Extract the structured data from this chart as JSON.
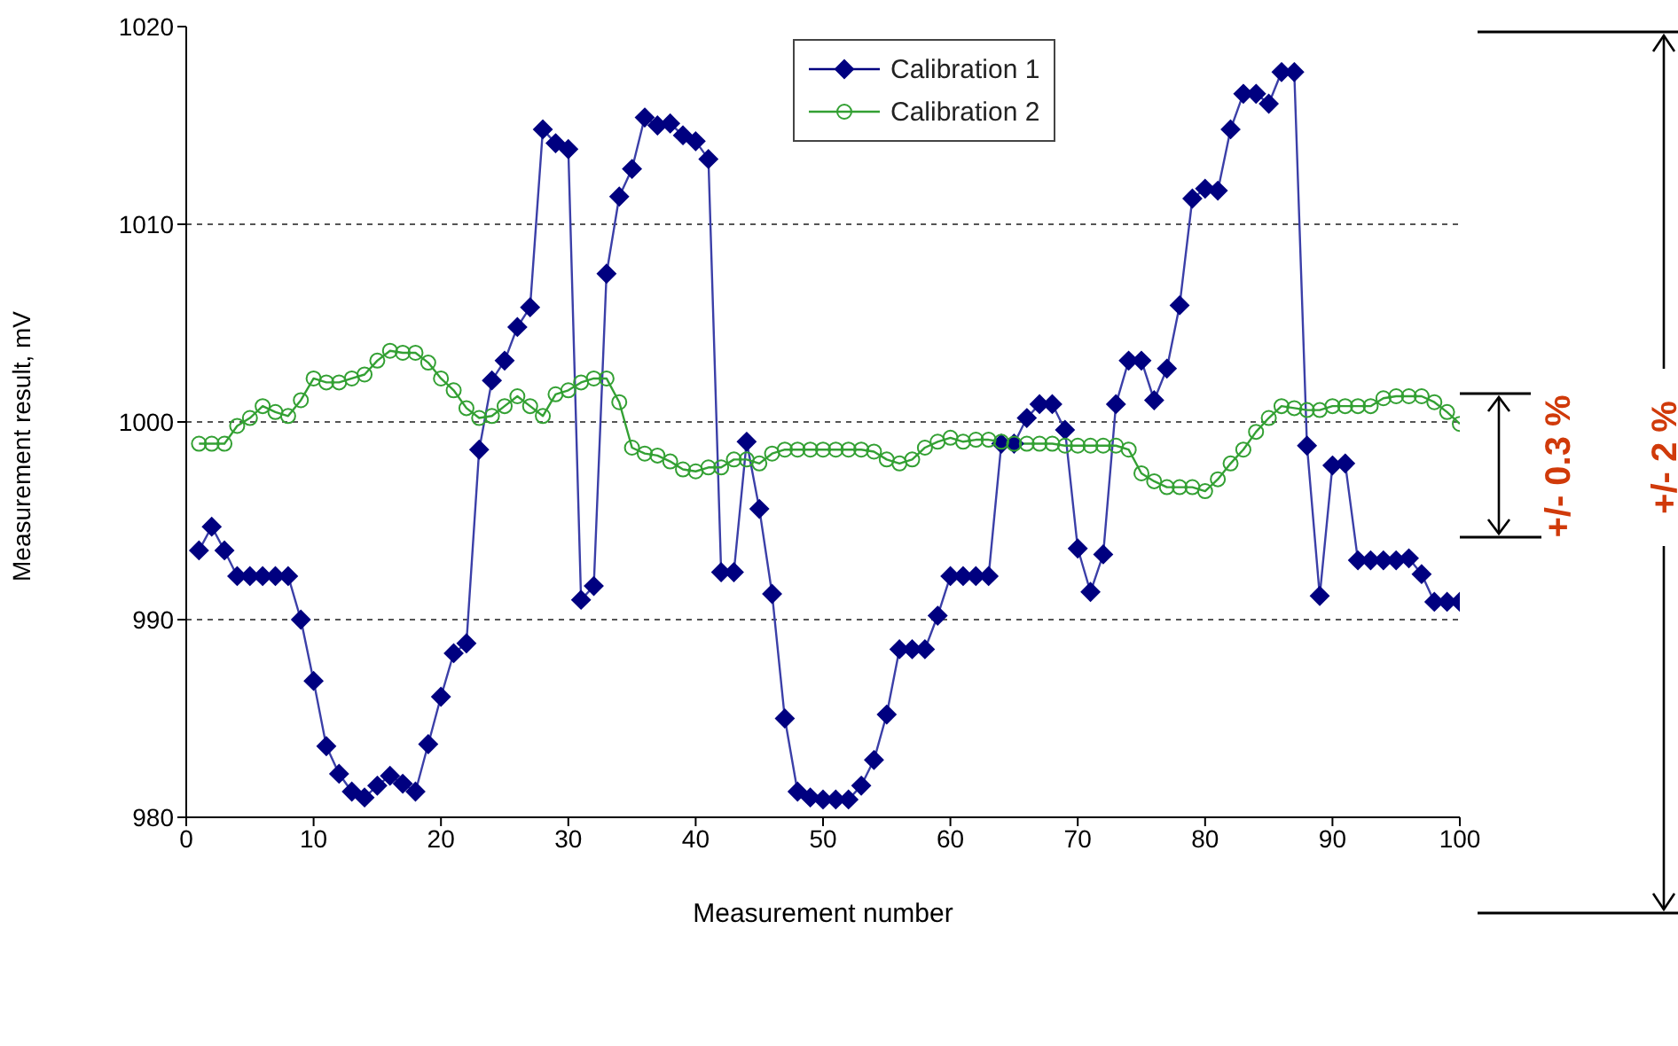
{
  "chart_data": {
    "type": "line",
    "xlabel": "Measurement number",
    "ylabel": "Measurement result, mV",
    "x": [
      1,
      2,
      3,
      4,
      5,
      6,
      7,
      8,
      9,
      10,
      11,
      12,
      13,
      14,
      15,
      16,
      17,
      18,
      19,
      20,
      21,
      22,
      23,
      24,
      25,
      26,
      27,
      28,
      29,
      30,
      31,
      32,
      33,
      34,
      35,
      36,
      37,
      38,
      39,
      40,
      41,
      42,
      43,
      44,
      45,
      46,
      47,
      48,
      49,
      50,
      51,
      52,
      53,
      54,
      55,
      56,
      57,
      58,
      59,
      60,
      61,
      62,
      63,
      64,
      65,
      66,
      67,
      68,
      69,
      70,
      71,
      72,
      73,
      74,
      75,
      76,
      77,
      78,
      79,
      80,
      81,
      82,
      83,
      84,
      85,
      86,
      87,
      88,
      89,
      90,
      91,
      92,
      93,
      94,
      95,
      96,
      97,
      98,
      99,
      100
    ],
    "series": [
      {
        "name": "Calibration 1",
        "color": "#000080",
        "marker": "diamond",
        "values": [
          993.5,
          994.7,
          993.5,
          992.2,
          992.2,
          992.2,
          992.2,
          992.2,
          990.0,
          986.9,
          983.6,
          982.2,
          981.3,
          981.0,
          981.6,
          982.1,
          981.7,
          981.3,
          983.7,
          986.1,
          988.3,
          988.8,
          998.6,
          1002.1,
          1003.1,
          1004.8,
          1005.8,
          1014.8,
          1014.1,
          1013.8,
          991.0,
          991.7,
          1007.5,
          1011.4,
          1012.8,
          1015.4,
          1015.0,
          1015.1,
          1014.5,
          1014.2,
          1013.3,
          992.4,
          992.4,
          999.0,
          995.6,
          991.3,
          985.0,
          981.3,
          981.0,
          980.9,
          980.9,
          980.9,
          981.6,
          982.9,
          985.2,
          988.5,
          988.5,
          988.5,
          990.2,
          992.2,
          992.2,
          992.2,
          992.2,
          998.9,
          998.9,
          1000.2,
          1000.9,
          1000.9,
          999.6,
          993.6,
          991.4,
          993.3,
          1000.9,
          1003.1,
          1003.1,
          1001.1,
          1002.7,
          1005.9,
          1011.3,
          1011.8,
          1011.7,
          1014.8,
          1016.6,
          1016.6,
          1016.1,
          1017.7,
          1017.7,
          998.8,
          991.2,
          997.8,
          997.9,
          993.0,
          993.0,
          993.0,
          993.0,
          993.1,
          992.3,
          990.9,
          990.9,
          990.9
        ]
      },
      {
        "name": "Calibration 2",
        "color": "#33a033",
        "marker": "circle",
        "values": [
          998.9,
          998.9,
          998.9,
          999.8,
          1000.2,
          1000.8,
          1000.5,
          1000.3,
          1001.1,
          1002.2,
          1002.0,
          1002.0,
          1002.2,
          1002.4,
          1003.1,
          1003.6,
          1003.5,
          1003.5,
          1003.0,
          1002.2,
          1001.6,
          1000.7,
          1000.2,
          1000.3,
          1000.8,
          1001.3,
          1000.8,
          1000.3,
          1001.4,
          1001.6,
          1002.0,
          1002.2,
          1002.2,
          1001.0,
          998.7,
          998.4,
          998.3,
          998.0,
          997.6,
          997.5,
          997.7,
          997.7,
          998.1,
          998.1,
          997.9,
          998.4,
          998.6,
          998.6,
          998.6,
          998.6,
          998.6,
          998.6,
          998.6,
          998.5,
          998.1,
          997.9,
          998.1,
          998.7,
          999.0,
          999.2,
          999.0,
          999.1,
          999.1,
          999.0,
          998.9,
          998.9,
          998.9,
          998.9,
          998.8,
          998.8,
          998.8,
          998.8,
          998.8,
          998.6,
          997.4,
          997.0,
          996.7,
          996.7,
          996.7,
          996.5,
          997.1,
          997.9,
          998.6,
          999.5,
          1000.2,
          1000.8,
          1000.7,
          1000.6,
          1000.6,
          1000.8,
          1000.8,
          1000.8,
          1000.8,
          1001.2,
          1001.3,
          1001.3,
          1001.3,
          1001.0,
          1000.5,
          999.9
        ]
      }
    ],
    "xlim": [
      0,
      100
    ],
    "xticks": [
      0,
      10,
      20,
      30,
      40,
      50,
      60,
      70,
      80,
      90,
      100
    ],
    "ylim": [
      980,
      1020
    ],
    "yticks": [
      980,
      990,
      1000,
      1010,
      1020
    ],
    "grid": "y",
    "legend": "top",
    "line_style": "solid",
    "annotations": [
      "+/- 0.3 %",
      "+/- 2 %"
    ]
  }
}
